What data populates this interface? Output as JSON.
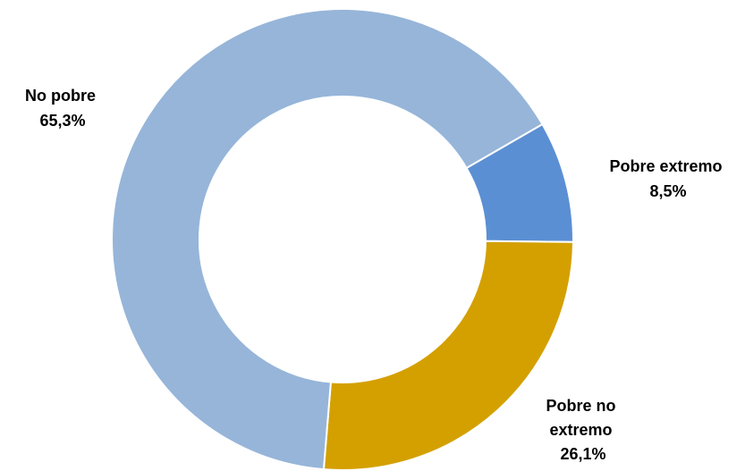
{
  "chart_data": {
    "type": "pie",
    "donut": true,
    "title": "",
    "slices": [
      {
        "label": "Pobre extremo",
        "value": 8.5,
        "value_label": "8,5%",
        "color": "#5b8fd3"
      },
      {
        "label": "Pobre no extremo",
        "value": 26.1,
        "value_label": "26,1%",
        "color": "#d4a000"
      },
      {
        "label": "No pobre",
        "value": 65.3,
        "value_label": "65,3%",
        "color": "#96b5d9"
      }
    ],
    "label_lines": [
      [
        "Pobre extremo",
        "8,5%"
      ],
      [
        "Pobre no",
        "extremo",
        "26,1%"
      ],
      [
        "No pobre",
        "65,3%"
      ]
    ]
  }
}
